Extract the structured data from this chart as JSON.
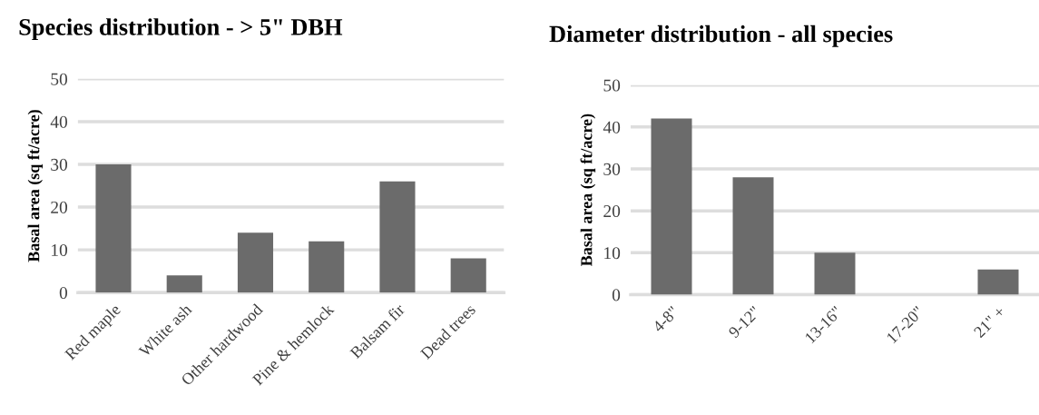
{
  "chart_data": [
    {
      "type": "bar",
      "title": "Species distribution - > 5\" DBH",
      "ylabel": "Basal area (sq ft/acre)",
      "categories": [
        "Red maple",
        "White ash",
        "Other hardwood",
        "Pine & hemlock",
        "Balsam fir",
        "Dead trees"
      ],
      "values": [
        30,
        4,
        14,
        12,
        26,
        8
      ],
      "color": "#6b6b6b",
      "ylim": [
        0,
        50
      ],
      "yticks": [
        0,
        10,
        20,
        30,
        40,
        50
      ],
      "grid": "y"
    },
    {
      "type": "bar",
      "title": "Diameter distribution - all species",
      "ylabel": "Basal area (sq ft/acre)",
      "categories": [
        "4-8\"",
        "9-12\"",
        "13-16\"",
        "17-20\"",
        "21\" +"
      ],
      "values": [
        42,
        28,
        10,
        null,
        6
      ],
      "color": "#6b6b6b",
      "ylim": [
        0,
        50
      ],
      "yticks": [
        0,
        10,
        20,
        30,
        40,
        50
      ],
      "grid": "y"
    }
  ]
}
